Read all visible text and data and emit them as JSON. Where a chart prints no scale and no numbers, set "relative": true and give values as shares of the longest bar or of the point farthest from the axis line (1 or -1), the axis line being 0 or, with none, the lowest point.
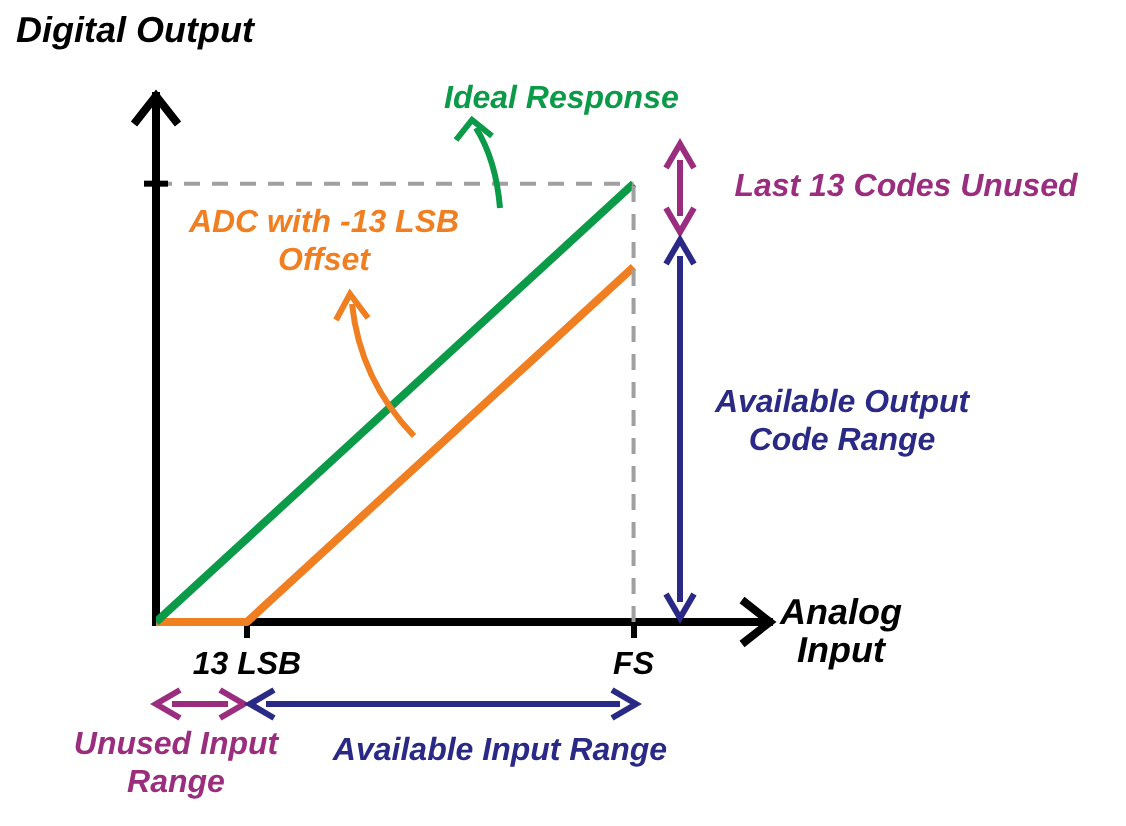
{
  "chart_data": {
    "type": "line",
    "relative": true,
    "xlabel": "Analog Input",
    "ylabel": "Digital Output",
    "categories": [
      null,
      null,
      null,
      null,
      "13 LSB",
      null,
      null,
      null,
      null,
      null,
      null,
      null,
      null,
      null,
      null,
      null,
      null,
      null,
      null,
      null,
      null,
      "FS",
      null,
      null,
      null,
      null,
      null,
      null
    ],
    "series": [
      {
        "name": "Ideal Response",
        "color": "#0a9a48",
        "values": [
          0,
          null,
          null,
          null,
          null,
          null,
          null,
          null,
          null,
          null,
          null,
          null,
          null,
          null,
          null,
          null,
          null,
          null,
          null,
          null,
          null,
          1,
          null,
          null,
          null,
          null,
          null,
          null
        ]
      },
      {
        "name": "ADC with -13 LSB Offset",
        "color": "#f07f22",
        "values": [
          0,
          null,
          null,
          null,
          0,
          null,
          null,
          null,
          null,
          null,
          null,
          null,
          null,
          null,
          null,
          null,
          null,
          null,
          null,
          null,
          null,
          0.81,
          null,
          null,
          null,
          null,
          null,
          null
        ]
      }
    ],
    "ref_lines": [
      {
        "axis": "y",
        "value": 1,
        "color": "#a0a0a0",
        "line_style": "dashed"
      },
      {
        "axis": "x",
        "value": "FS",
        "color": "#a0a0a0",
        "line_style": "dashed"
      }
    ],
    "annotations": [
      "Last 13 Codes Unused",
      "Available Output Code Range",
      "Unused Input Range",
      "Available Input Range"
    ],
    "grid": false,
    "legend": false,
    "marker": "none",
    "line_style": "solid"
  }
}
